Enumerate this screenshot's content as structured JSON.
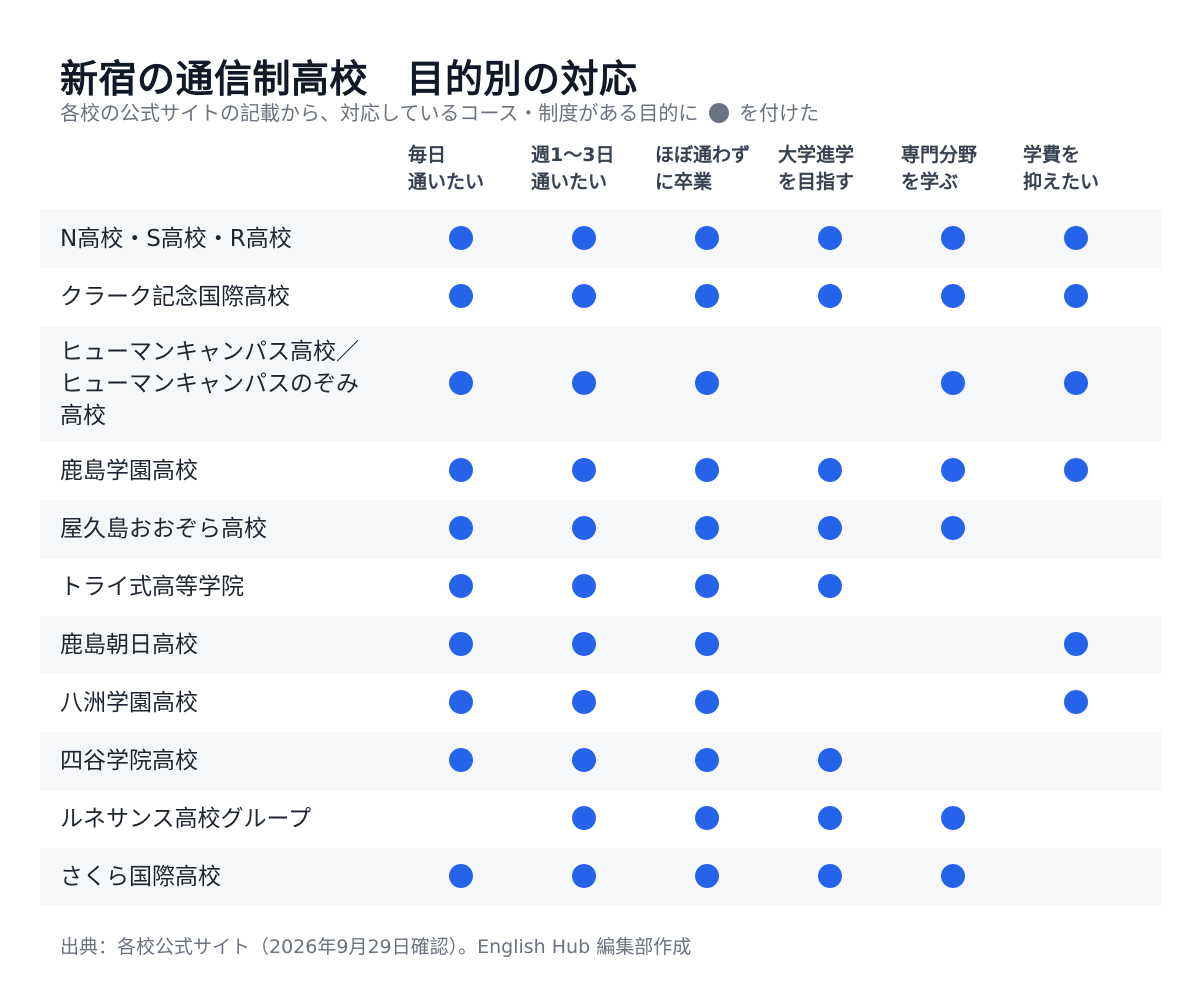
{
  "chart_data": {
    "type": "table",
    "title": "新宿の通信制高校　目的別の対応",
    "subtitle_before": "各校の公式サイトの記載から、対応しているコース・制度がある目的に",
    "subtitle_after": "を付けた",
    "columns": [
      "毎日\n通いたい",
      "週1〜3日\n通いたい",
      "ほぼ通わず\nに卒業",
      "大学進学\nを目指す",
      "専門分野\nを学ぶ",
      "学費を\n抑えたい"
    ],
    "rows": [
      {
        "label": "N高校・S高校・R高校",
        "marks": [
          true,
          true,
          true,
          true,
          true,
          true
        ]
      },
      {
        "label": "クラーク記念国際高校",
        "marks": [
          true,
          true,
          true,
          true,
          true,
          true
        ]
      },
      {
        "label": "ヒューマンキャンパス高校／\nヒューマンキャンパスのぞみ\n高校",
        "marks": [
          true,
          true,
          true,
          false,
          true,
          true
        ]
      },
      {
        "label": "鹿島学園高校",
        "marks": [
          true,
          true,
          true,
          true,
          true,
          true
        ]
      },
      {
        "label": "屋久島おおぞら高校",
        "marks": [
          true,
          true,
          true,
          true,
          true,
          false
        ]
      },
      {
        "label": "トライ式高等学院",
        "marks": [
          true,
          true,
          true,
          true,
          false,
          false
        ]
      },
      {
        "label": "鹿島朝日高校",
        "marks": [
          true,
          true,
          true,
          false,
          false,
          true
        ]
      },
      {
        "label": "八洲学園高校",
        "marks": [
          true,
          true,
          true,
          false,
          false,
          true
        ]
      },
      {
        "label": "四谷学院高校",
        "marks": [
          true,
          true,
          true,
          true,
          false,
          false
        ]
      },
      {
        "label": "ルネサンス高校グループ",
        "marks": [
          false,
          true,
          true,
          true,
          true,
          false
        ]
      },
      {
        "label": "さくら国際高校",
        "marks": [
          true,
          true,
          true,
          true,
          true,
          false
        ]
      }
    ],
    "source": "出典：各校公式サイト（2026年9月29日確認）。English Hub 編集部作成"
  },
  "colors": {
    "mark": "#2563eb",
    "legend_mark": "#6b7280",
    "row_shade": "#f6f7f9",
    "title": "#111827",
    "muted": "#6b7280"
  }
}
